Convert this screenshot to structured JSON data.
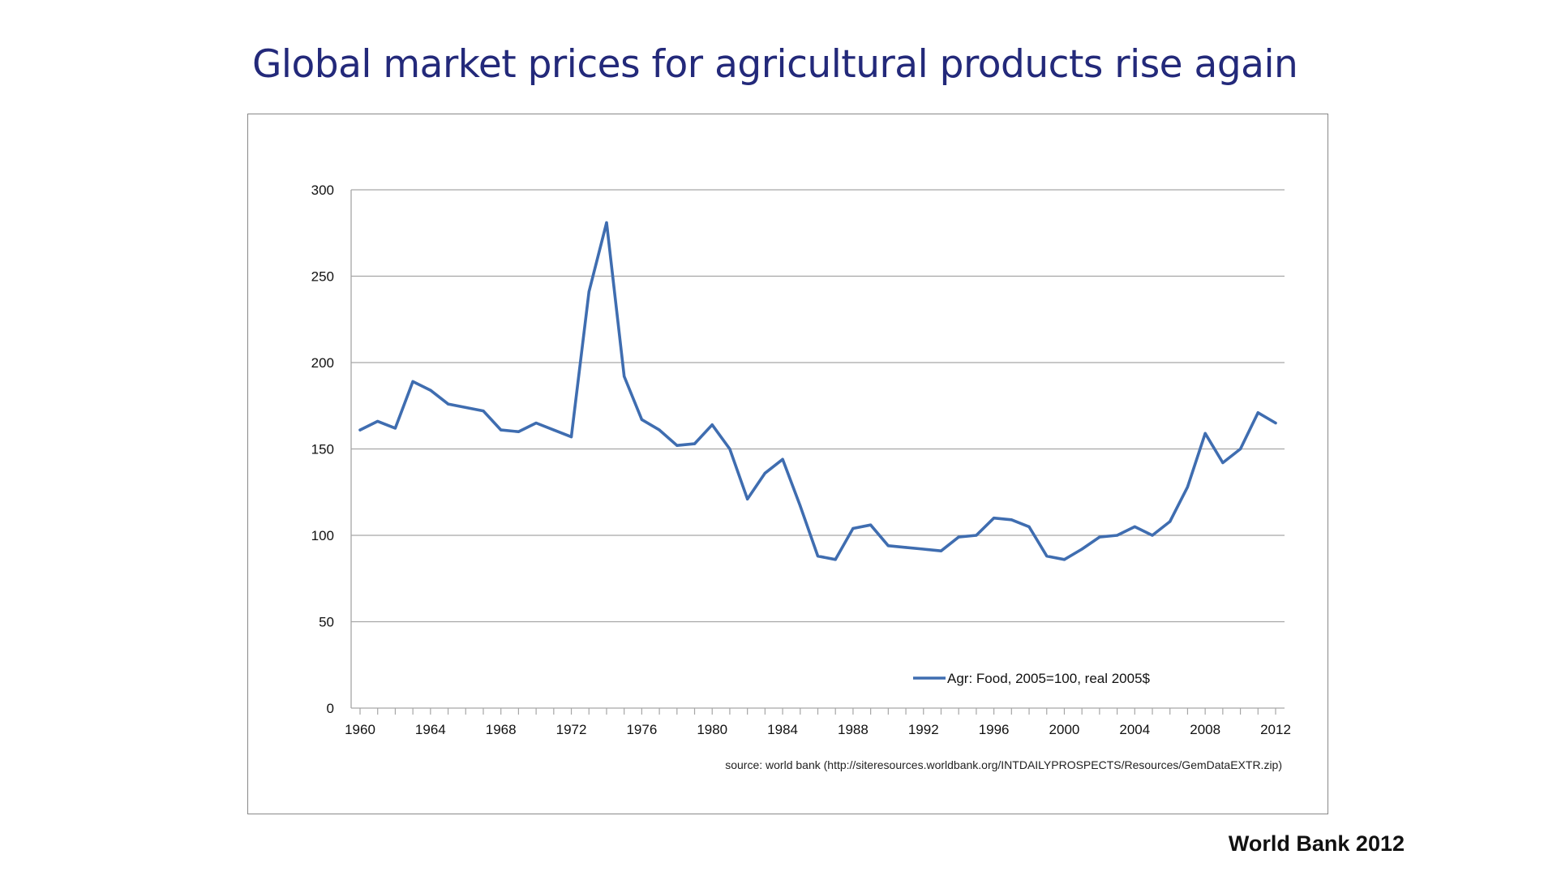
{
  "slide": {
    "title": "Global market prices for agricultural products rise again",
    "credit": "World Bank 2012"
  },
  "colors": {
    "title": "#23297a",
    "series": "#3f6db0",
    "grid": "#a6a6a6"
  },
  "chart_data": {
    "type": "line",
    "title": "",
    "xlabel": "",
    "ylabel": "",
    "ylim": [
      0,
      300
    ],
    "yticks": [
      0,
      50,
      100,
      150,
      200,
      250,
      300
    ],
    "xlim": [
      1960,
      2012
    ],
    "xticks": [
      1960,
      1964,
      1968,
      1972,
      1976,
      1980,
      1984,
      1988,
      1992,
      1996,
      2000,
      2004,
      2008,
      2012
    ],
    "grid": true,
    "legend_position": "bottom-right inside plot",
    "note": "source: world bank (http://siteresources.worldbank.org/INTDAILYPROSPECTS/Resources/GemDataEXTR.zip)",
    "x": [
      1960,
      1961,
      1962,
      1963,
      1964,
      1965,
      1966,
      1967,
      1968,
      1969,
      1970,
      1971,
      1972,
      1973,
      1974,
      1975,
      1976,
      1977,
      1978,
      1979,
      1980,
      1981,
      1982,
      1983,
      1984,
      1985,
      1986,
      1987,
      1988,
      1989,
      1990,
      1991,
      1992,
      1993,
      1994,
      1995,
      1996,
      1997,
      1998,
      1999,
      2000,
      2001,
      2002,
      2003,
      2004,
      2005,
      2006,
      2007,
      2008,
      2009,
      2010,
      2011,
      2012
    ],
    "series": [
      {
        "name": "Agr: Food, 2005=100, real 2005$",
        "values": [
          161,
          166,
          162,
          189,
          184,
          176,
          174,
          172,
          161,
          160,
          165,
          161,
          157,
          241,
          281,
          192,
          167,
          161,
          152,
          153,
          164,
          150,
          121,
          136,
          144,
          117,
          88,
          86,
          104,
          106,
          94,
          93,
          92,
          91,
          99,
          100,
          110,
          109,
          105,
          88,
          86,
          92,
          99,
          100,
          105,
          100,
          108,
          128,
          159,
          142,
          150,
          171,
          165
        ]
      }
    ]
  }
}
